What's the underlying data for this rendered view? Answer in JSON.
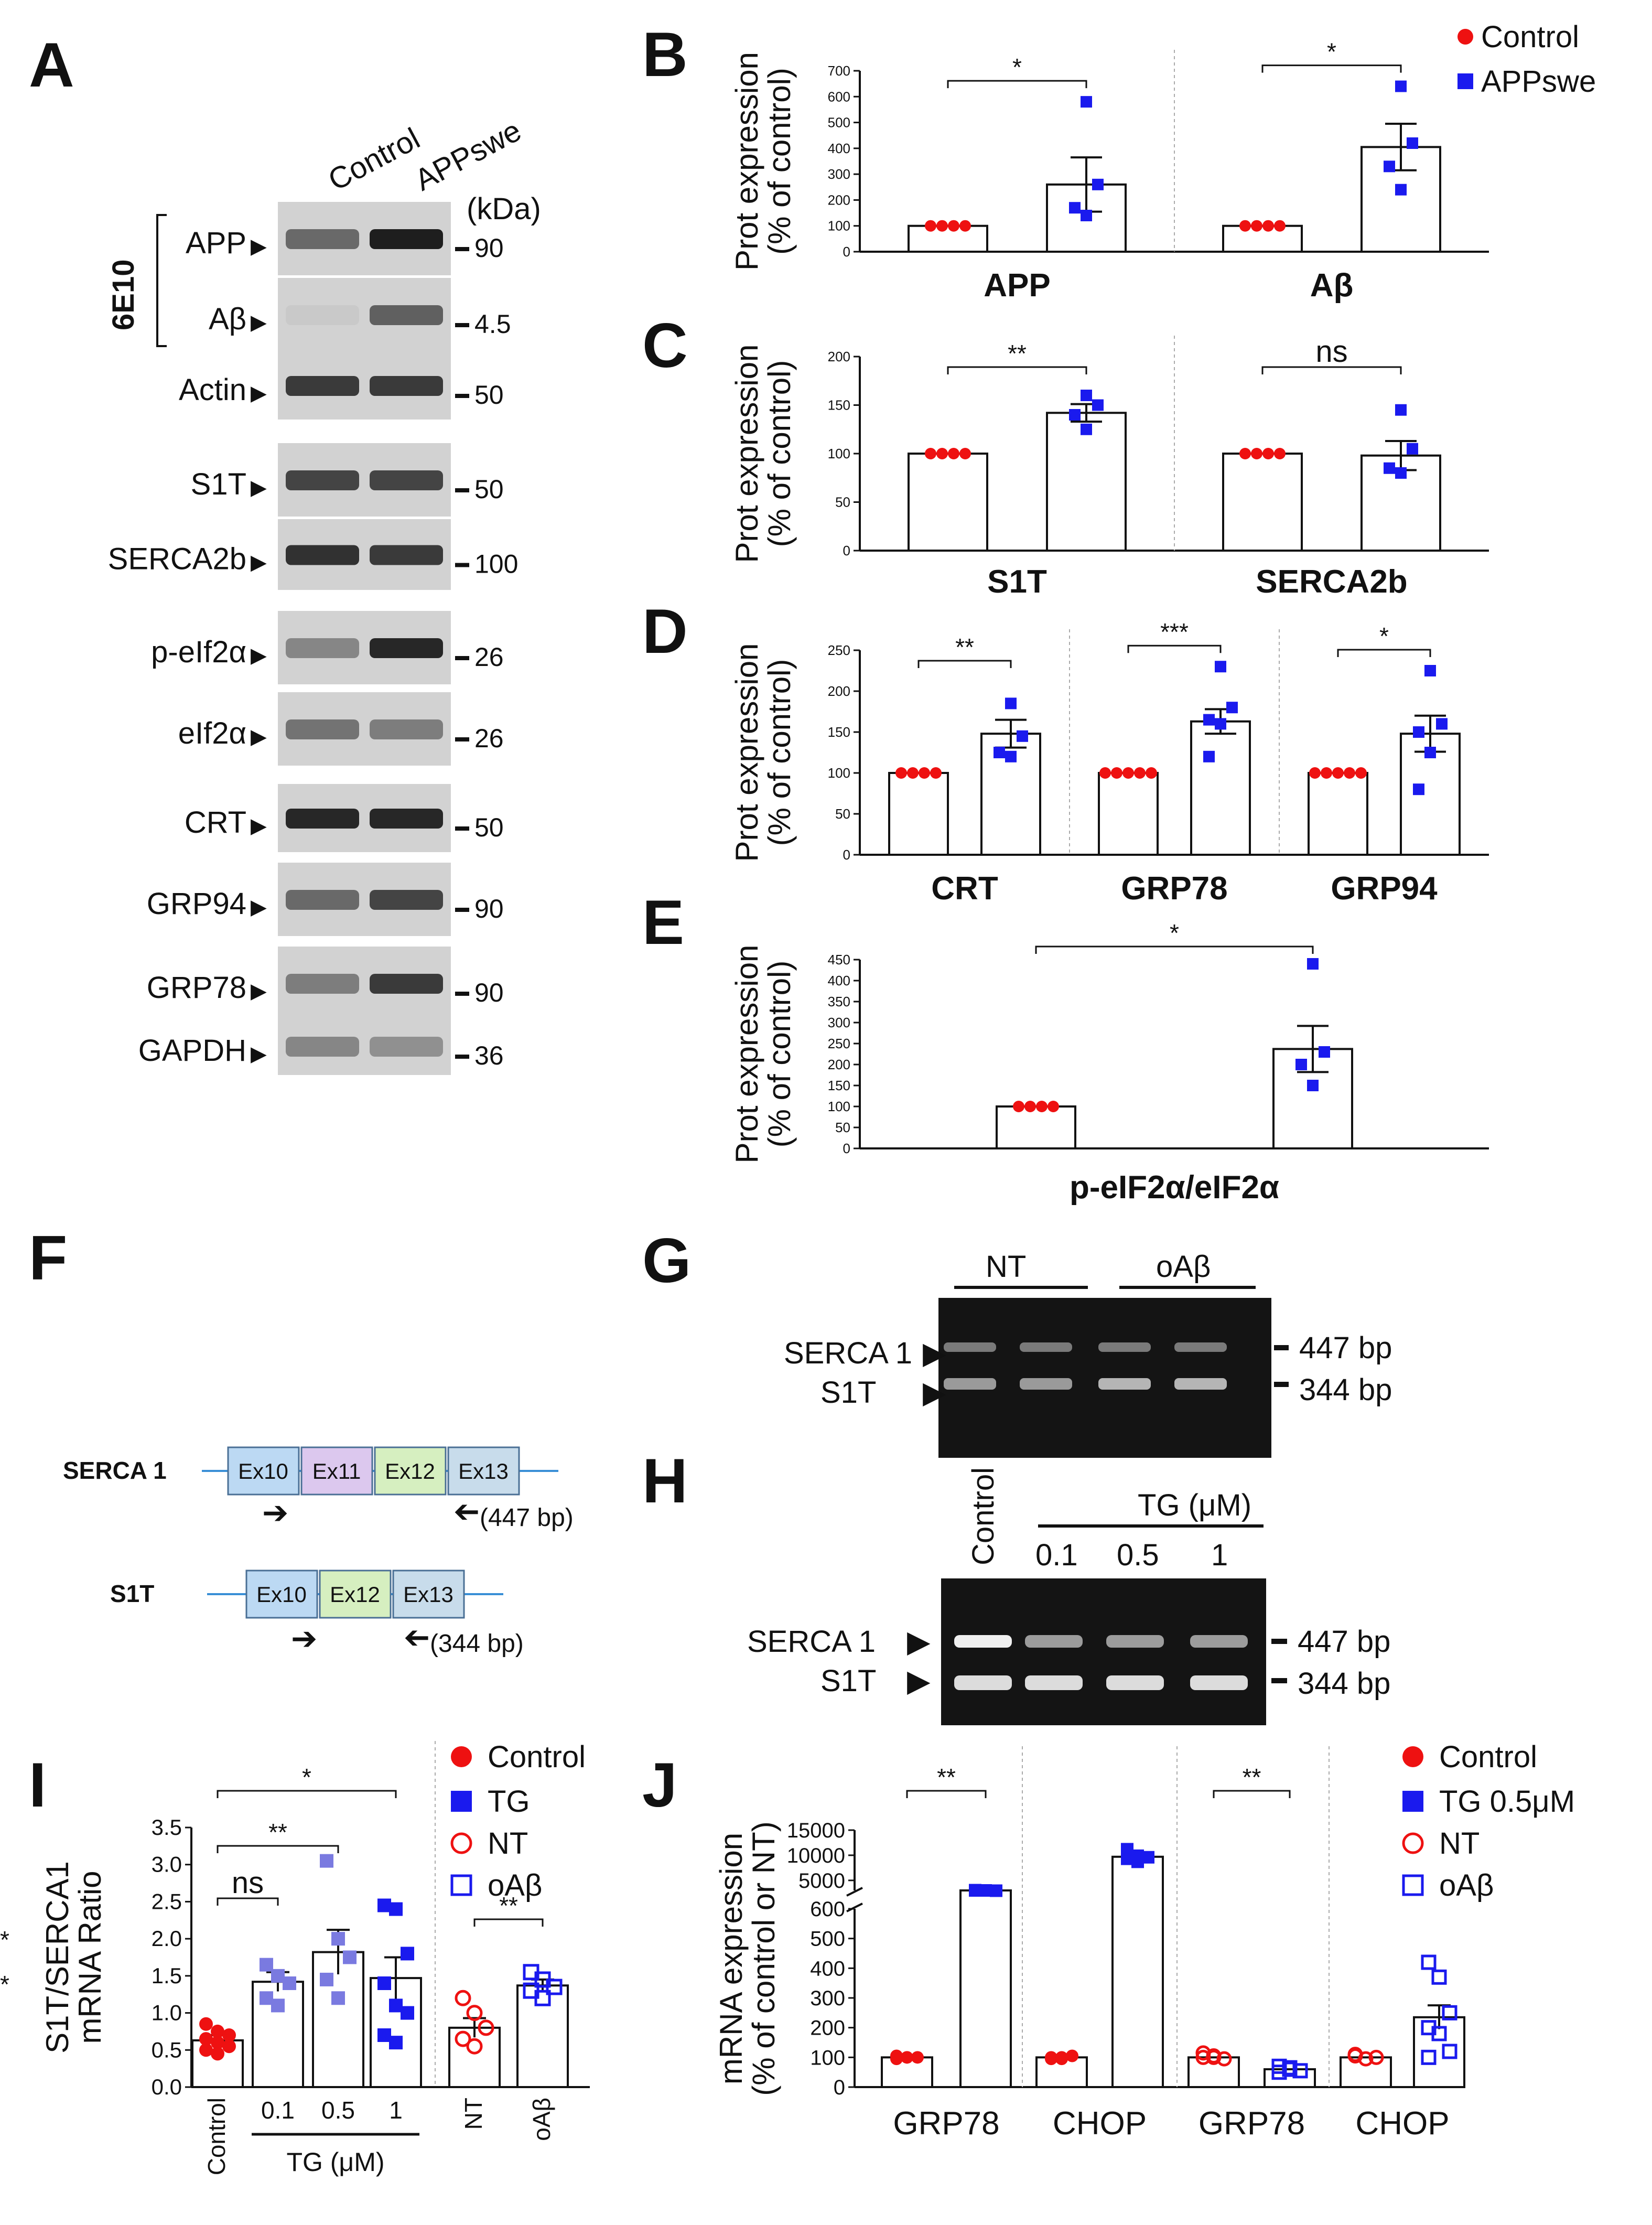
{
  "panel_letters": [
    "A",
    "B",
    "C",
    "D",
    "E",
    "F",
    "G",
    "H",
    "I",
    "J"
  ],
  "colors": {
    "control": "#ee1111",
    "treated": "#1a1aee",
    "light_blue": "#7a7ae0",
    "axis": "#111111",
    "gel_bg": "#141414",
    "blot_bg": "#d2d2d2"
  },
  "panel_a": {
    "lanes": [
      "Control",
      "APPswe"
    ],
    "kda_label": "(kDa)",
    "antibody_label": "6E10",
    "blots": [
      {
        "label": "APP",
        "kda": "90"
      },
      {
        "label": "Aβ",
        "kda": "4.5"
      },
      {
        "label": "Actin",
        "kda": "50"
      },
      {
        "label": "S1T",
        "kda": "50"
      },
      {
        "label": "SERCA2b",
        "kda": "100"
      },
      {
        "label": "p-eIf2α",
        "kda": "26"
      },
      {
        "label": "eIf2α",
        "kda": "26"
      },
      {
        "label": "CRT",
        "kda": "50"
      },
      {
        "label": "GRP94",
        "kda": "90"
      },
      {
        "label": "GRP78",
        "kda": "90"
      },
      {
        "label": "GAPDH",
        "kda": "36"
      }
    ]
  },
  "legend_b": [
    "Control",
    "APPswe"
  ],
  "legend_i": [
    "Control",
    "TG",
    "NT",
    "oAβ"
  ],
  "legend_j": [
    "Control",
    "TG 0.5μM",
    "NT",
    "oAβ"
  ],
  "panel_f": {
    "serca1": {
      "label": "SERCA 1",
      "exons": [
        "Ex10",
        "Ex11",
        "Ex12",
        "Ex13"
      ],
      "size": "(447 bp)"
    },
    "s1t": {
      "label": "S1T",
      "exons": [
        "Ex10",
        "Ex12",
        "Ex13"
      ],
      "size": "(344 bp)"
    }
  },
  "panel_g": {
    "groups": [
      "NT",
      "oAβ"
    ],
    "bands": [
      "SERCA 1",
      "S1T"
    ],
    "sizes": [
      "447 bp",
      "344 bp"
    ]
  },
  "panel_h": {
    "control_label": "Control",
    "tg_label": "TG (μM)",
    "concentrations": [
      "0.1",
      "0.5",
      "1"
    ],
    "bands": [
      "SERCA 1",
      "S1T"
    ],
    "sizes": [
      "447 bp",
      "344 bp"
    ]
  },
  "chart_data": [
    {
      "panel": "B",
      "type": "bar",
      "ylabel": [
        "Prot expression",
        "(% of control)"
      ],
      "ylim": [
        0,
        700
      ],
      "ticks": [
        "0",
        "100",
        "200",
        "300",
        "400",
        "500",
        "600",
        "700"
      ],
      "groups": [
        {
          "label": "APP",
          "bars": [
            {
              "name": "Control",
              "value": 100,
              "points": [
                100,
                100,
                100,
                100
              ]
            },
            {
              "name": "APPswe",
              "value": 260,
              "sem": 105,
              "points": [
                580,
                260,
                170,
                140
              ]
            }
          ],
          "sig": "*"
        },
        {
          "label": "Aβ",
          "bars": [
            {
              "name": "Control",
              "value": 100,
              "points": [
                100,
                100,
                100,
                100
              ]
            },
            {
              "name": "APPswe",
              "value": 405,
              "sem": 90,
              "points": [
                640,
                420,
                330,
                240
              ]
            }
          ],
          "sig": "*"
        }
      ]
    },
    {
      "panel": "C",
      "type": "bar",
      "ylabel": [
        "Prot expression",
        "(% of control)"
      ],
      "ylim": [
        0,
        200
      ],
      "ticks": [
        "0",
        "50",
        "100",
        "150",
        "200"
      ],
      "groups": [
        {
          "label": "S1T",
          "bars": [
            {
              "name": "Control",
              "value": 100,
              "points": [
                100,
                100,
                100,
                100
              ]
            },
            {
              "name": "APPswe",
              "value": 142,
              "sem": 9,
              "points": [
                160,
                150,
                140,
                125
              ]
            }
          ],
          "sig": "**"
        },
        {
          "label": "SERCA2b",
          "bars": [
            {
              "name": "Control",
              "value": 100,
              "points": [
                100,
                100,
                100,
                100
              ]
            },
            {
              "name": "APPswe",
              "value": 98,
              "sem": 15,
              "points": [
                145,
                105,
                85,
                80
              ]
            }
          ],
          "sig": "ns"
        }
      ]
    },
    {
      "panel": "D",
      "type": "bar",
      "ylabel": [
        "Prot expression",
        "(% of control)"
      ],
      "ylim": [
        0,
        250
      ],
      "ticks": [
        "0",
        "50",
        "100",
        "150",
        "200",
        "250"
      ],
      "groups": [
        {
          "label": "CRT",
          "bars": [
            {
              "name": "Control",
              "value": 100,
              "points": [
                100,
                100,
                100,
                100
              ]
            },
            {
              "name": "APPswe",
              "value": 148,
              "sem": 17,
              "points": [
                185,
                145,
                125,
                120
              ]
            }
          ],
          "sig": "**"
        },
        {
          "label": "GRP78",
          "bars": [
            {
              "name": "Control",
              "value": 100,
              "points": [
                100,
                100,
                100,
                100,
                100
              ]
            },
            {
              "name": "APPswe",
              "value": 163,
              "sem": 15,
              "points": [
                230,
                180,
                165,
                160,
                120
              ]
            }
          ],
          "sig": "***"
        },
        {
          "label": "GRP94",
          "bars": [
            {
              "name": "Control",
              "value": 100,
              "points": [
                100,
                100,
                100,
                100,
                100
              ]
            },
            {
              "name": "APPswe",
              "value": 148,
              "sem": 22,
              "points": [
                225,
                160,
                150,
                125,
                80
              ]
            }
          ],
          "sig": "*"
        }
      ]
    },
    {
      "panel": "E",
      "type": "bar",
      "ylabel": [
        "Prot expression",
        "(% of control)"
      ],
      "ylim": [
        0,
        450
      ],
      "ticks": [
        "0",
        "50",
        "100",
        "150",
        "200",
        "250",
        "300",
        "350",
        "400",
        "450"
      ],
      "groups": [
        {
          "label": "p-eIF2α/eIF2α",
          "bars": [
            {
              "name": "Control",
              "value": 100,
              "points": [
                100,
                100,
                100,
                100
              ]
            },
            {
              "name": "APPswe",
              "value": 237,
              "sem": 55,
              "points": [
                440,
                230,
                200,
                150
              ]
            }
          ],
          "sig": "*"
        }
      ]
    },
    {
      "panel": "I",
      "type": "bar",
      "ylabel": [
        "S1T/SERCA1",
        "mRNA Ratio"
      ],
      "ylim": [
        0,
        3.5
      ],
      "ticks": [
        "0.0",
        "0.5",
        "1.0",
        "1.5",
        "2.0",
        "2.5",
        "3.0",
        "3.5"
      ],
      "categories": [
        "Control",
        "0.1",
        "0.5",
        "1",
        "NT",
        "oAβ"
      ],
      "xlabel_group": "TG (μM)",
      "bars": [
        {
          "value": 0.63,
          "sem": 0.07,
          "points": [
            0.85,
            0.75,
            0.7,
            0.65,
            0.6,
            0.55,
            0.5,
            0.45
          ],
          "style": "control"
        },
        {
          "value": 1.42,
          "sem": 0.13,
          "points": [
            1.65,
            1.5,
            1.4,
            1.2,
            1.1
          ],
          "style": "light"
        },
        {
          "value": 1.82,
          "sem": 0.3,
          "points": [
            3.05,
            2.0,
            1.75,
            1.45,
            1.2
          ],
          "style": "light"
        },
        {
          "value": 1.47,
          "sem": 0.28,
          "points": [
            2.45,
            2.4,
            1.8,
            1.4,
            1.1,
            1.0,
            0.7,
            0.6
          ],
          "style": "treated"
        },
        {
          "value": 0.8,
          "sem": 0.13,
          "points": [
            1.2,
            1.0,
            0.8,
            0.65,
            0.55
          ],
          "style": "open-control"
        },
        {
          "value": 1.37,
          "sem": 0.08,
          "points": [
            1.55,
            1.45,
            1.35,
            1.3,
            1.2
          ],
          "style": "open-treated"
        }
      ],
      "sig": [
        {
          "from": 0,
          "to": 1,
          "label": "ns"
        },
        {
          "from": 0,
          "to": 2,
          "label": "**"
        },
        {
          "from": 0,
          "to": 3,
          "label": "*"
        },
        {
          "from": 4,
          "to": 5,
          "label": "**"
        }
      ]
    },
    {
      "panel": "J",
      "type": "bar",
      "ylabel": [
        "mRNA expression",
        "(% of control or NT)"
      ],
      "ylim": [
        0,
        15000
      ],
      "axis_break": [
        600,
        3000
      ],
      "ticks_lower": [
        "0",
        "100",
        "200",
        "300",
        "400",
        "500",
        "600"
      ],
      "ticks_upper": [
        "5000",
        "10000",
        "15000"
      ],
      "categories": [
        "GRP78",
        "CHOP",
        "GRP78",
        "CHOP"
      ],
      "bars": [
        {
          "value": 100,
          "points": [
            95,
            100,
            100,
            105,
            100
          ],
          "style": "control"
        },
        {
          "value": 3000,
          "points": [
            3050,
            3000,
            2950,
            3000
          ],
          "style": "treated"
        },
        {
          "value": 100,
          "points": [
            95,
            100,
            105,
            100,
            95
          ],
          "style": "control"
        },
        {
          "value": 9700,
          "sem": 600,
          "points": [
            11200,
            9900,
            9600,
            9300,
            8700
          ],
          "style": "treated"
        },
        {
          "value": 100,
          "points": [
            115,
            100,
            95,
            100,
            105
          ],
          "style": "open-control"
        },
        {
          "value": 60,
          "points": [
            70,
            60,
            55,
            50,
            65
          ],
          "style": "open-treated"
        },
        {
          "value": 100,
          "points": [
            110,
            95,
            100,
            105
          ],
          "style": "open-control"
        },
        {
          "value": 235,
          "sem": 40,
          "points": [
            420,
            370,
            250,
            200,
            180,
            120,
            100
          ],
          "style": "open-treated"
        }
      ],
      "sig": [
        {
          "from": 0,
          "to": 1,
          "label": "**"
        },
        {
          "from": 2,
          "to": 3,
          "label": "**"
        },
        {
          "from": 4,
          "to": 5,
          "label": "**"
        },
        {
          "from": 6,
          "to": 7,
          "label": "**"
        }
      ]
    }
  ]
}
